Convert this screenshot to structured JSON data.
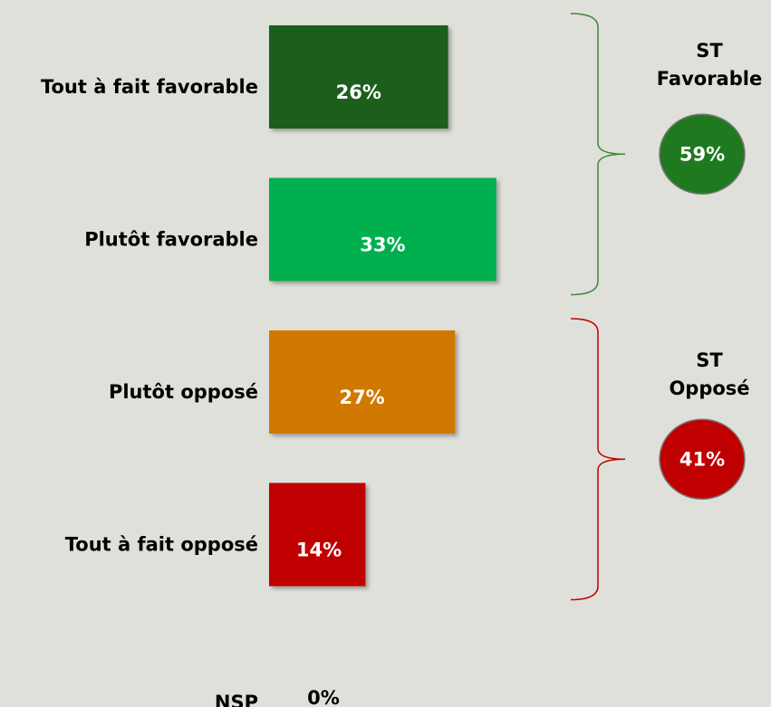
{
  "chart_data": {
    "type": "bar",
    "categories": [
      "Tout à fait favorable",
      "Plutôt favorable",
      "Plutôt opposé",
      "Tout à fait opposé",
      "NSP"
    ],
    "values": [
      26,
      33,
      27,
      14,
      0
    ],
    "value_labels": [
      "26%",
      "33%",
      "27%",
      "14%",
      "0%"
    ],
    "colors": [
      "#1b5e1a",
      "#00b050",
      "#d07800",
      "#c00000",
      null
    ],
    "groups": [
      {
        "title": [
          "ST",
          "Favorable"
        ],
        "value": 59,
        "value_label": "59%",
        "color": "#1f7a1f"
      },
      {
        "title": [
          "ST",
          "Opposé"
        ],
        "value": 41,
        "value_label": "41%",
        "color": "#c00000"
      }
    ]
  }
}
